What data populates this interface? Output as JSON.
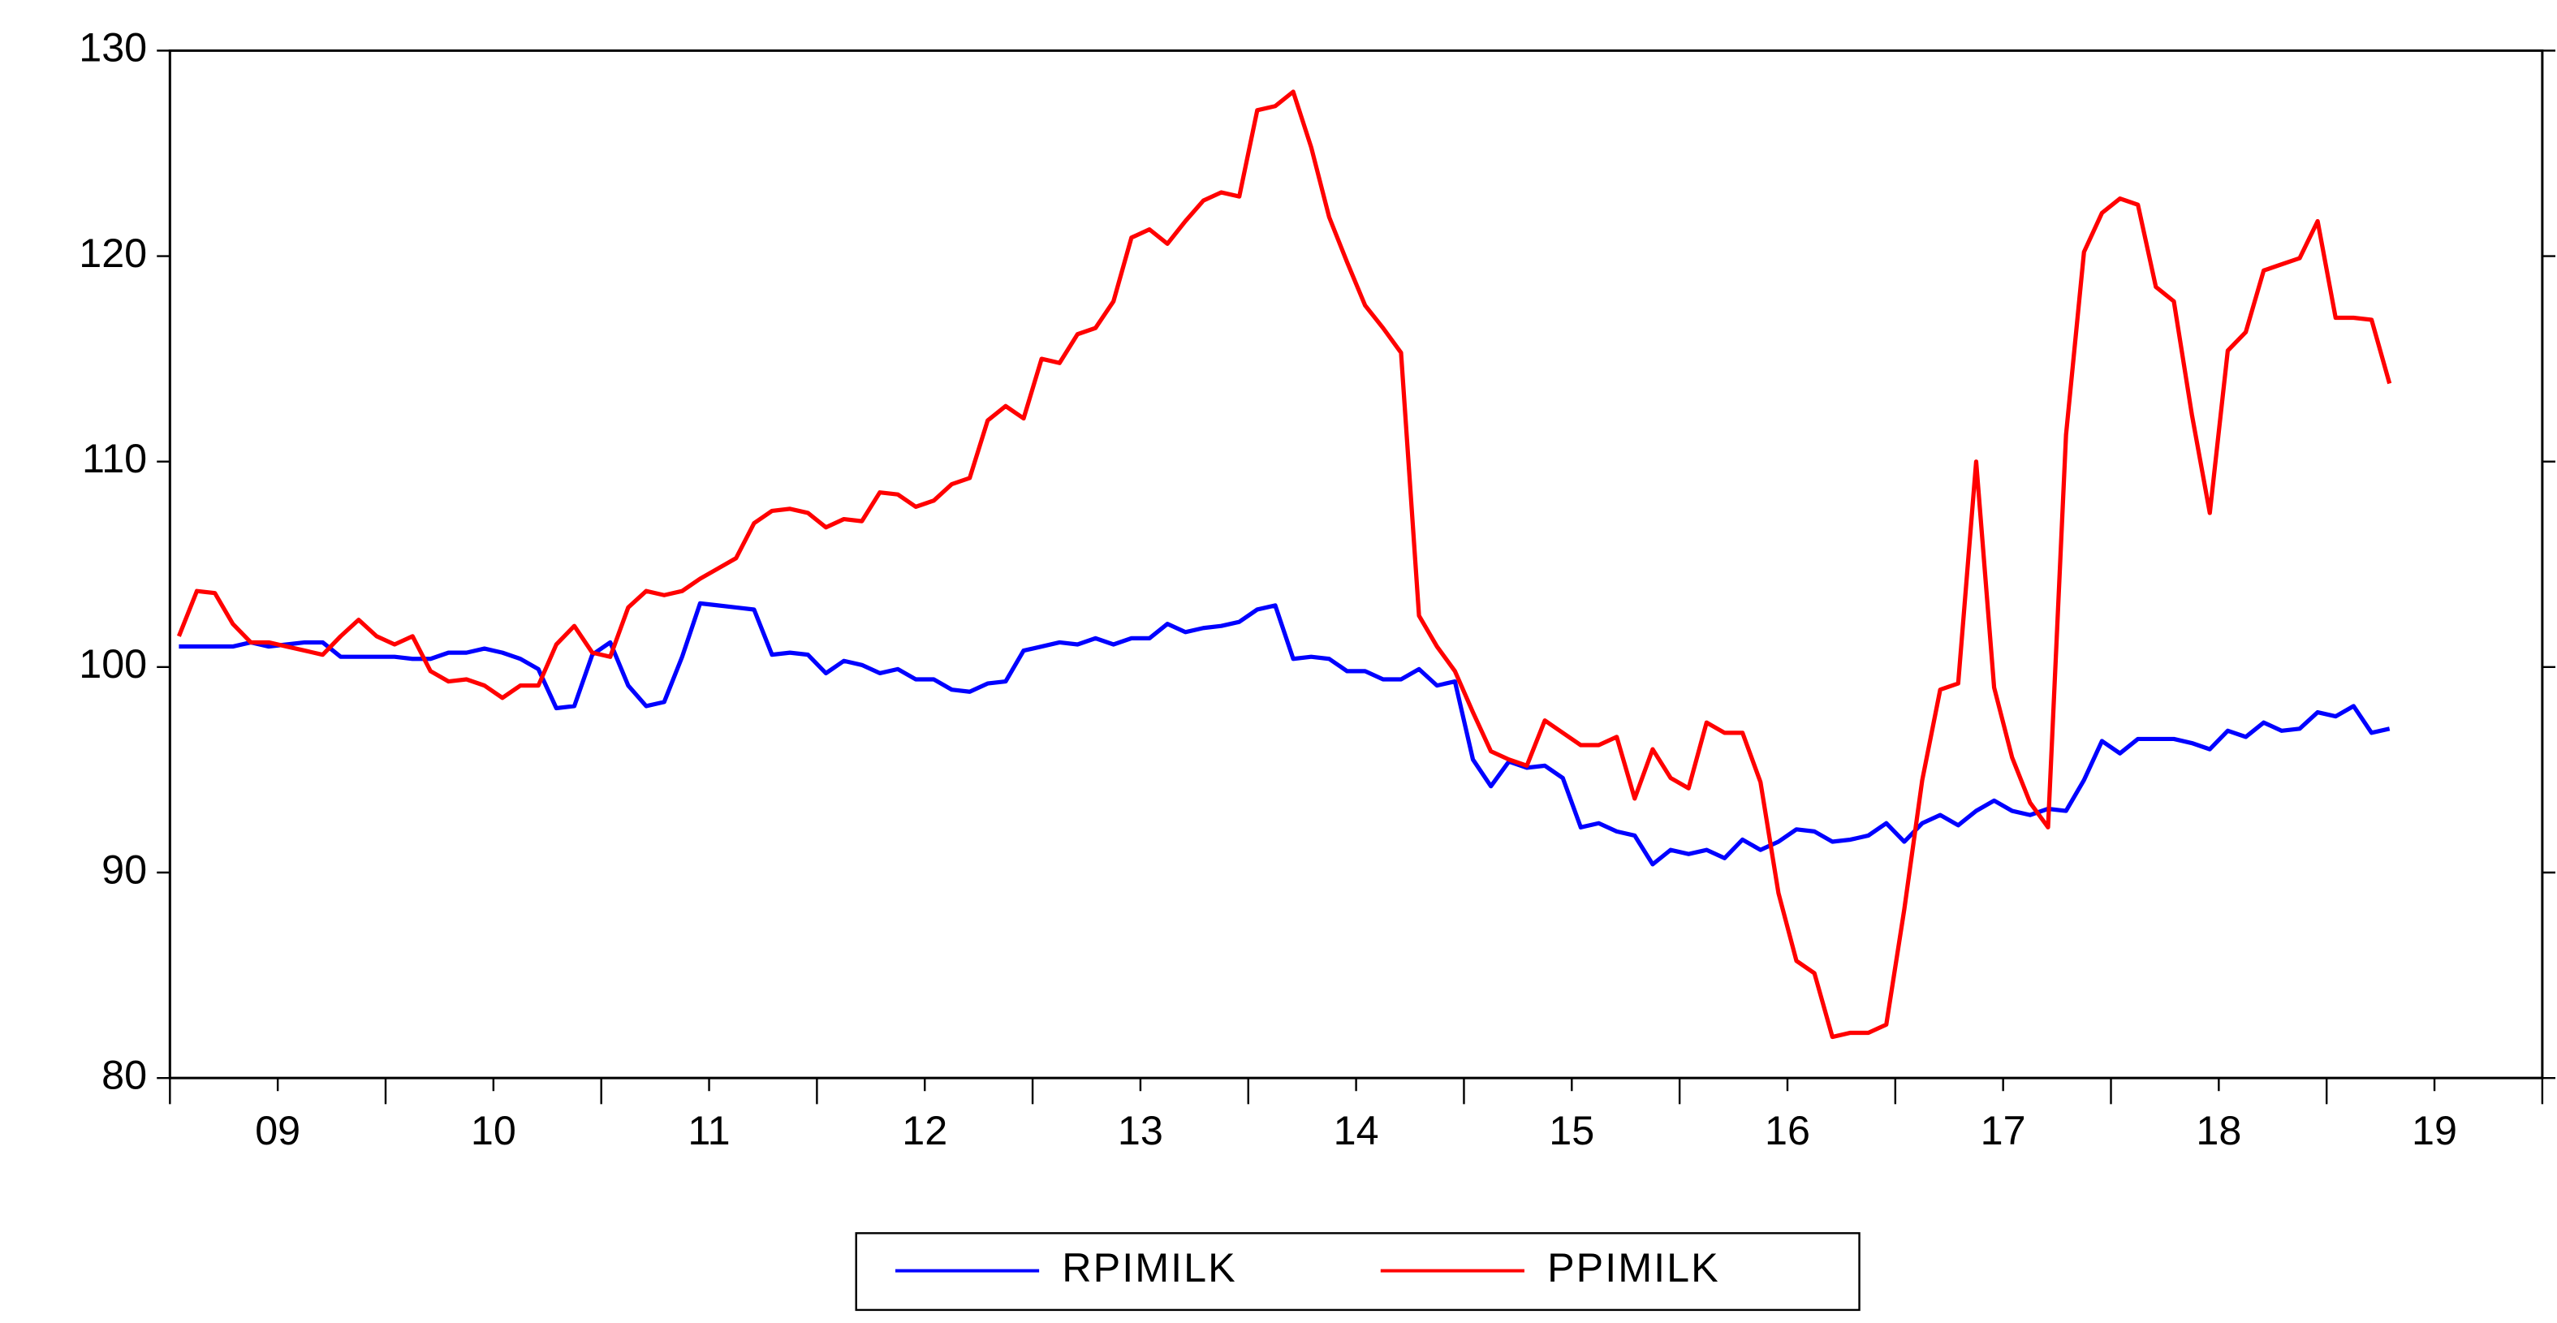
{
  "chart_data": {
    "type": "line",
    "categories": [
      null,
      null,
      null,
      null,
      null,
      null,
      "09",
      null,
      null,
      null,
      null,
      null,
      null,
      null,
      null,
      null,
      null,
      null,
      "10",
      null,
      null,
      null,
      null,
      null,
      null,
      null,
      null,
      null,
      null,
      null,
      "11",
      null,
      null,
      null,
      null,
      null,
      null,
      null,
      null,
      null,
      null,
      null,
      "12",
      null,
      null,
      null,
      null,
      null,
      null,
      null,
      null,
      null,
      null,
      null,
      "13",
      null,
      null,
      null,
      null,
      null,
      null,
      null,
      null,
      null,
      null,
      null,
      "14",
      null,
      null,
      null,
      null,
      null,
      null,
      null,
      null,
      null,
      null,
      null,
      "15",
      null,
      null,
      null,
      null,
      null,
      null,
      null,
      null,
      null,
      null,
      null,
      "16",
      null,
      null,
      null,
      null,
      null,
      null,
      null,
      null,
      null,
      null,
      null,
      "17",
      null,
      null,
      null,
      null,
      null,
      null,
      null,
      null,
      null,
      null,
      null,
      "18",
      null,
      null,
      null,
      null,
      null,
      null,
      null,
      null,
      null,
      null,
      null,
      "19",
      null,
      null,
      null,
      null,
      null
    ],
    "series": [
      {
        "name": "RPIMILK",
        "color": "#0000ff",
        "values": [
          101,
          101,
          101,
          101,
          101.2,
          101,
          101.1,
          101.2,
          101.2,
          100.5,
          100.5,
          100.5,
          100.5,
          100.4,
          100.4,
          100.7,
          100.7,
          100.9,
          100.7,
          100.4,
          99.9,
          98.0,
          98.1,
          100.6,
          101.2,
          99.1,
          98.1,
          98.3,
          100.5,
          103.1,
          103.0,
          102.9,
          102.8,
          100.6,
          100.7,
          100.6,
          99.7,
          100.3,
          100.1,
          99.7,
          99.9,
          99.4,
          99.4,
          98.9,
          98.8,
          99.2,
          99.3,
          100.8,
          101.0,
          101.2,
          101.1,
          101.4,
          101.1,
          101.4,
          101.4,
          102.1,
          101.7,
          101.9,
          102.0,
          102.2,
          102.8,
          103.0,
          100.4,
          100.5,
          100.4,
          99.8,
          99.8,
          99.4,
          99.4,
          99.9,
          99.1,
          99.3,
          95.5,
          94.2,
          95.4,
          95.1,
          95.2,
          94.6,
          92.2,
          92.4,
          92.0,
          91.8,
          90.4,
          91.1,
          90.9,
          91.1,
          90.7,
          91.6,
          91.1,
          91.5,
          92.1,
          92.0,
          91.5,
          91.6,
          91.8,
          92.4,
          91.5,
          92.4,
          92.8,
          92.3,
          93.0,
          93.5,
          93.0,
          92.8,
          93.1,
          93.0,
          94.5,
          96.4,
          95.8,
          96.5,
          96.5,
          96.5,
          96.3,
          96.0,
          96.9,
          96.6,
          97.3,
          96.9,
          97.0,
          97.8,
          97.6,
          98.1,
          96.8,
          97.0,
          null,
          null,
          null,
          null,
          null,
          null,
          null,
          null
        ]
      },
      {
        "name": "PPIMILK",
        "color": "#ff0000",
        "values": [
          101.5,
          103.7,
          103.6,
          102.1,
          101.2,
          101.2,
          101.0,
          100.8,
          100.6,
          101.5,
          102.3,
          101.5,
          101.1,
          101.5,
          99.8,
          99.3,
          99.4,
          99.1,
          98.5,
          99.1,
          99.1,
          101.1,
          102.0,
          100.7,
          100.5,
          102.9,
          103.7,
          103.5,
          103.7,
          104.3,
          104.8,
          105.3,
          107.0,
          107.6,
          107.7,
          107.5,
          106.8,
          107.2,
          107.1,
          108.5,
          108.4,
          107.8,
          108.1,
          108.9,
          109.2,
          112.0,
          112.7,
          112.1,
          115.0,
          114.8,
          116.2,
          116.5,
          117.8,
          120.9,
          121.3,
          120.6,
          121.7,
          122.7,
          123.1,
          122.9,
          127.1,
          127.3,
          128.0,
          125.3,
          121.9,
          119.7,
          117.6,
          116.5,
          115.3,
          102.5,
          101.0,
          99.8,
          97.8,
          95.9,
          95.5,
          95.2,
          97.4,
          96.8,
          96.2,
          96.2,
          96.6,
          93.6,
          96.0,
          94.6,
          94.1,
          97.3,
          96.8,
          96.8,
          94.4,
          89.0,
          85.7,
          85.1,
          82.0,
          82.2,
          82.2,
          82.6,
          88.2,
          94.5,
          98.9,
          99.2,
          110.0,
          99.0,
          95.6,
          93.4,
          92.2,
          111.3,
          120.2,
          122.1,
          122.8,
          122.5,
          118.5,
          117.8,
          112.3,
          107.5,
          115.4,
          116.3,
          119.3,
          119.6,
          119.9,
          121.7,
          117.0,
          117.0,
          116.9,
          113.8,
          null,
          null,
          null,
          null,
          null,
          null,
          null,
          null
        ]
      }
    ],
    "ylim": [
      80,
      130
    ],
    "yticks": [
      80,
      90,
      100,
      110,
      120,
      130
    ],
    "legend": "bottom"
  }
}
